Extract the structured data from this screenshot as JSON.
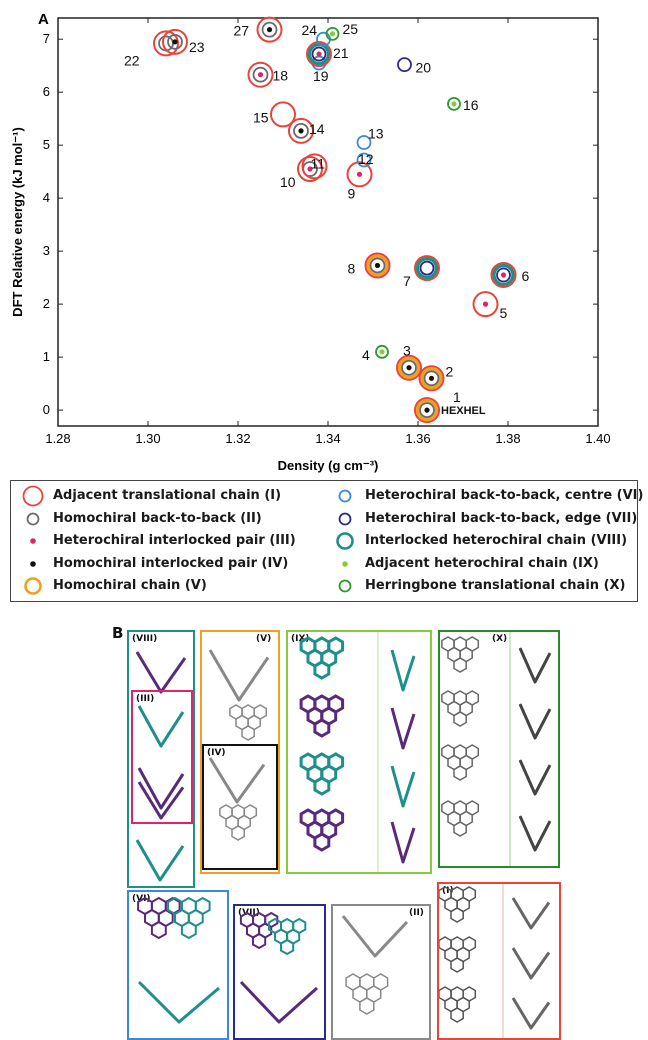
{
  "chart_data": {
    "type": "scatter",
    "panel_label": "A",
    "xlabel": "Density (g cm⁻³)",
    "ylabel": "DFT Relative energy (kJ mol⁻¹)",
    "xlim": [
      1.28,
      1.4
    ],
    "ylim": [
      -0.3,
      7.4
    ],
    "xticks": [
      "1.28",
      "1.30",
      "1.32",
      "1.34",
      "1.36",
      "1.38",
      "1.40"
    ],
    "yticks": [
      "0",
      "1",
      "2",
      "3",
      "4",
      "5",
      "6",
      "7"
    ],
    "grid": false,
    "points": [
      {
        "label": "HEXHEL",
        "x": 1.362,
        "y": 0.0,
        "markers": [
          "I",
          "V",
          "II",
          "IV"
        ]
      },
      {
        "label": "1",
        "x": 1.362,
        "y": 0.0,
        "markers": []
      },
      {
        "label": "2",
        "x": 1.363,
        "y": 0.6,
        "markers": [
          "I",
          "V",
          "II",
          "IV"
        ]
      },
      {
        "label": "3",
        "x": 1.358,
        "y": 0.8,
        "markers": [
          "I",
          "V",
          "II",
          "IV"
        ]
      },
      {
        "label": "4",
        "x": 1.352,
        "y": 1.1,
        "markers": [
          "X",
          "IX"
        ]
      },
      {
        "label": "5",
        "x": 1.375,
        "y": 2.0,
        "markers": [
          "I",
          "III"
        ]
      },
      {
        "label": "6",
        "x": 1.379,
        "y": 2.55,
        "markers": [
          "I",
          "V",
          "VIII",
          "VII",
          "III"
        ]
      },
      {
        "label": "7",
        "x": 1.362,
        "y": 2.68,
        "markers": [
          "I",
          "V",
          "VIII",
          "VII",
          "VI"
        ]
      },
      {
        "label": "8",
        "x": 1.351,
        "y": 2.73,
        "markers": [
          "I",
          "V",
          "II",
          "IV"
        ]
      },
      {
        "label": "9",
        "x": 1.347,
        "y": 4.45,
        "markers": [
          "I",
          "III"
        ]
      },
      {
        "label": "10",
        "x": 1.336,
        "y": 4.55,
        "markers": [
          "I",
          "II",
          "III"
        ]
      },
      {
        "label": "11",
        "x": 1.337,
        "y": 4.6,
        "markers": [
          "I"
        ]
      },
      {
        "label": "12",
        "x": 1.348,
        "y": 4.72,
        "markers": [
          "VI"
        ]
      },
      {
        "label": "13",
        "x": 1.348,
        "y": 5.05,
        "markers": [
          "VI"
        ]
      },
      {
        "label": "14",
        "x": 1.334,
        "y": 5.27,
        "markers": [
          "I",
          "II",
          "IV"
        ]
      },
      {
        "label": "15",
        "x": 1.33,
        "y": 5.58,
        "markers": [
          "I"
        ]
      },
      {
        "label": "16",
        "x": 1.368,
        "y": 5.78,
        "markers": [
          "X",
          "IX"
        ]
      },
      {
        "label": "18",
        "x": 1.325,
        "y": 6.33,
        "markers": [
          "I",
          "II",
          "III"
        ]
      },
      {
        "label": "19",
        "x": 1.338,
        "y": 6.55,
        "markers": [
          "VI"
        ]
      },
      {
        "label": "20",
        "x": 1.357,
        "y": 6.52,
        "markers": [
          "VII"
        ]
      },
      {
        "label": "21",
        "x": 1.338,
        "y": 6.72,
        "markers": [
          "I",
          "V",
          "VIII",
          "VII",
          "III"
        ]
      },
      {
        "label": "22",
        "x": 1.304,
        "y": 6.92,
        "markers": [
          "I",
          "II"
        ]
      },
      {
        "label": "23",
        "x": 1.306,
        "y": 6.95,
        "markers": [
          "I",
          "II",
          "IV"
        ]
      },
      {
        "label": "24",
        "x": 1.339,
        "y": 7.0,
        "markers": [
          "VI"
        ]
      },
      {
        "label": "25",
        "x": 1.341,
        "y": 7.1,
        "markers": [
          "X",
          "IX"
        ]
      },
      {
        "label": "27",
        "x": 1.327,
        "y": 7.18,
        "markers": [
          "I",
          "II",
          "IV"
        ]
      }
    ],
    "legend": [
      {
        "key": "I",
        "label": "Adjacent translational chain (I)",
        "symbol": "ring-large",
        "color": "#e8443a"
      },
      {
        "key": "II",
        "label": "Homochiral back-to-back (II)",
        "symbol": "ring-small",
        "color": "#6a6a6a"
      },
      {
        "key": "III",
        "label": "Heterochiral interlocked pair (III)",
        "symbol": "dot",
        "color": "#e0246a"
      },
      {
        "key": "IV",
        "label": "Homochiral interlocked pair (IV)",
        "symbol": "dot",
        "color": "#111111"
      },
      {
        "key": "V",
        "label": "Homochiral chain (V)",
        "symbol": "ring-medium",
        "color": "#f0a020"
      },
      {
        "key": "VI",
        "label": "Heterochiral back-to-back, centre (VI)",
        "symbol": "ring-small",
        "color": "#3a8ad8"
      },
      {
        "key": "VII",
        "label": "Heterochiral back-to-back, edge (VII)",
        "symbol": "ring-small",
        "color": "#2a2a8a"
      },
      {
        "key": "VIII",
        "label": "Interlocked heterochiral chain (VIII)",
        "symbol": "ring-medium",
        "color": "#1f8f8a"
      },
      {
        "key": "IX",
        "label": "Adjacent heterochiral chain (IX)",
        "symbol": "dot",
        "color": "#8ac840"
      },
      {
        "key": "X",
        "label": "Herringbone translational chain (X)",
        "symbol": "ring-small",
        "color": "#2a9a2a"
      }
    ]
  },
  "panel_b": {
    "panel_label": "B",
    "boxes": [
      {
        "id": "VIII",
        "label": "(VIII)",
        "color": "#1f8f8a"
      },
      {
        "id": "III",
        "label": "(III)",
        "color": "#e0246a"
      },
      {
        "id": "V",
        "label": "(V)",
        "color": "#f0a020"
      },
      {
        "id": "IV",
        "label": "(IV)",
        "color": "#111111"
      },
      {
        "id": "IX",
        "label": "(IX)",
        "color": "#8ac840"
      },
      {
        "id": "X",
        "label": "(X)",
        "color": "#2a8a2a"
      },
      {
        "id": "VI",
        "label": "(VI)",
        "color": "#3a8ad8"
      },
      {
        "id": "VII",
        "label": "(VII)",
        "color": "#2a2a8a"
      },
      {
        "id": "II",
        "label": "(II)",
        "color": "#888888"
      },
      {
        "id": "I",
        "label": "(I)",
        "color": "#e8443a"
      }
    ],
    "colors": {
      "teal": "#1f8f8a",
      "purple": "#5a2a7a",
      "grey": "#888888"
    }
  }
}
